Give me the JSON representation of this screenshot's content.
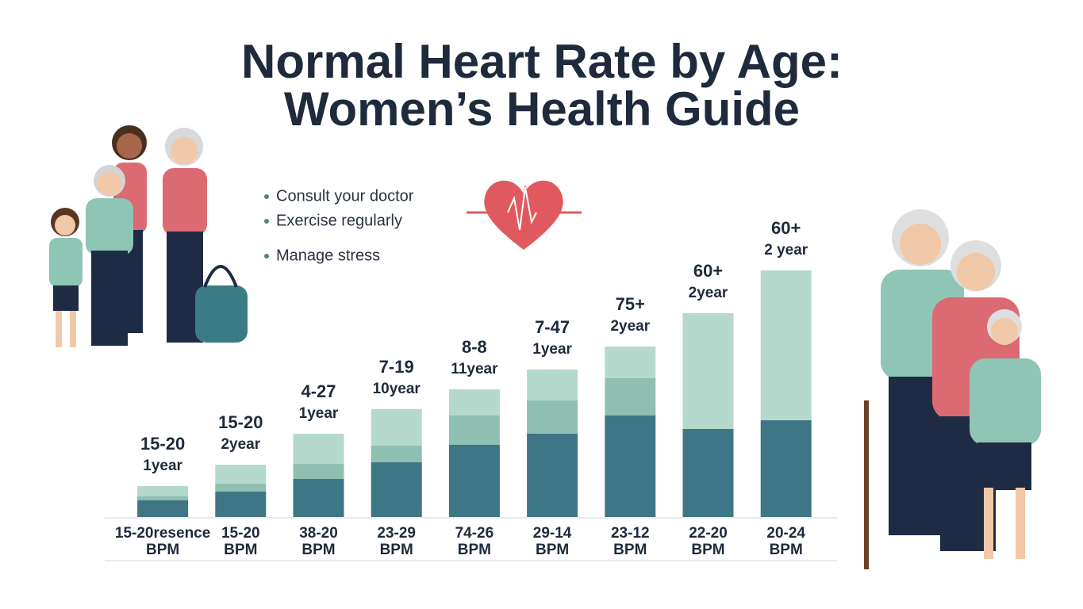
{
  "chart_data": {
    "type": "stacked-bar",
    "title": [
      "Normal Heart Rate by Age:",
      "Women’s Health Guide"
    ],
    "tips": [
      "Consult your doctor",
      "Exercise regularly",
      "Manage stress"
    ],
    "categories": [
      "15-20resence",
      "15-20",
      "38-20",
      "23-29",
      "74-26",
      "29-14",
      "23-12",
      "22-20",
      "20-24"
    ],
    "category_sublabels": [
      "BPM",
      "BPM",
      "BPM",
      "BPM",
      "BPM",
      "BPM",
      "BPM",
      "BPM",
      "BPM"
    ],
    "bar_labels": [
      "15-20",
      "15-20",
      "4-27",
      "7-19",
      "8-8",
      "7-47",
      "75+",
      "60+",
      "60+"
    ],
    "bar_sublabels": [
      "1year",
      "2year",
      "1year",
      "10year",
      "11year",
      "1year",
      "2year",
      "2year",
      "2 year"
    ],
    "series": [
      {
        "color": "#3f7686",
        "values": [
          21,
          32,
          48,
          69,
          91,
          105,
          128,
          111,
          122
        ]
      },
      {
        "color": "#8fbfb1",
        "values": [
          5,
          10,
          19,
          21,
          37,
          42,
          47,
          0,
          0
        ]
      },
      {
        "color": "#b6d9cd",
        "values": [
          13,
          24,
          38,
          46,
          33,
          39,
          40,
          146,
          189
        ]
      }
    ]
  }
}
